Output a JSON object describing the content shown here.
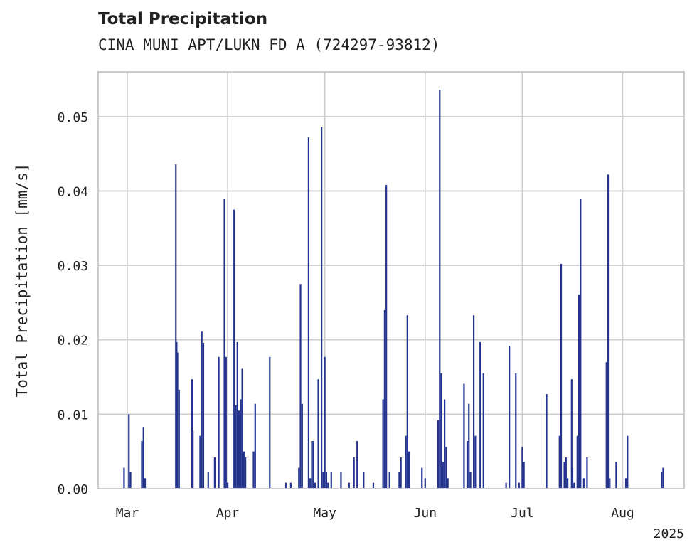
{
  "chart_data": {
    "type": "bar",
    "title": "Total Precipitation",
    "subtitle": "CINA MUNI APT/LUKN FD A (724297-93812)",
    "ylabel": "Total Precipitation [mm/s]",
    "xlabel": "",
    "x_axis": "date",
    "xlim": [
      "2025-02-20",
      "2025-08-20"
    ],
    "ylim": [
      0,
      0.056
    ],
    "yticks": [
      0.0,
      0.01,
      0.02,
      0.03,
      0.04,
      0.05
    ],
    "ytick_labels": [
      "0.00",
      "0.01",
      "0.02",
      "0.03",
      "0.04",
      "0.05"
    ],
    "xticks": [
      "2025-03-01",
      "2025-04-01",
      "2025-05-01",
      "2025-06-01",
      "2025-07-01",
      "2025-08-01"
    ],
    "xtick_labels": [
      "Mar",
      "Apr",
      "May",
      "Jun",
      "Jul",
      "Aug"
    ],
    "x_offset_label": "2025",
    "grid": true,
    "legend": "none",
    "bar_color": "#23338f",
    "series": [
      {
        "x": [
          "2025-02-28",
          "2025-03-01 12:00",
          "2025-03-02",
          "2025-03-05 12:00",
          "2025-03-06",
          "2025-03-06 12:00",
          "2025-03-16",
          "2025-03-16 06:00",
          "2025-03-16 12:00",
          "2025-03-17",
          "2025-03-21",
          "2025-03-21 06:00",
          "2025-03-23 12:00",
          "2025-03-24",
          "2025-03-24 12:00",
          "2025-03-26",
          "2025-03-28",
          "2025-03-29 06:00",
          "2025-03-31",
          "2025-03-31 12:00",
          "2025-04-01",
          "2025-04-03",
          "2025-04-03 12:00",
          "2025-04-04",
          "2025-04-04 12:00",
          "2025-04-05",
          "2025-04-05 12:00",
          "2025-04-06",
          "2025-04-06 12:00",
          "2025-04-09",
          "2025-04-09 12:00",
          "2025-04-14",
          "2025-04-19",
          "2025-04-20 12:00",
          "2025-04-23",
          "2025-04-23 12:00",
          "2025-04-24",
          "2025-04-26",
          "2025-04-26 12:00",
          "2025-04-27",
          "2025-04-27 12:00",
          "2025-04-28",
          "2025-04-29",
          "2025-04-30",
          "2025-04-30 12:00",
          "2025-05-01",
          "2025-05-01 12:00",
          "2025-05-02",
          "2025-05-03",
          "2025-05-06",
          "2025-05-08 12:00",
          "2025-05-10",
          "2025-05-11",
          "2025-05-13",
          "2025-05-16",
          "2025-05-19",
          "2025-05-19 12:00",
          "2025-05-20",
          "2025-05-21",
          "2025-05-24",
          "2025-05-24 12:00",
          "2025-05-26",
          "2025-05-26 12:00",
          "2025-05-27",
          "2025-05-31",
          "2025-06-01",
          "2025-06-05",
          "2025-06-05 12:00",
          "2025-06-06",
          "2025-06-06 12:00",
          "2025-06-07",
          "2025-06-07 12:00",
          "2025-06-08",
          "2025-06-13",
          "2025-06-14",
          "2025-06-14 12:00",
          "2025-06-15",
          "2025-06-16",
          "2025-06-16 12:00",
          "2025-06-18",
          "2025-06-19",
          "2025-06-26",
          "2025-06-27",
          "2025-06-29",
          "2025-06-30",
          "2025-07-01",
          "2025-07-01 12:00",
          "2025-07-08 12:00",
          "2025-07-12 12:00",
          "2025-07-13",
          "2025-07-14",
          "2025-07-14 12:00",
          "2025-07-15",
          "2025-07-16 06:00",
          "2025-07-16 12:00",
          "2025-07-17",
          "2025-07-18",
          "2025-07-18 12:00",
          "2025-07-19",
          "2025-07-20",
          "2025-07-21",
          "2025-07-27",
          "2025-07-27 12:00",
          "2025-07-28",
          "2025-07-30",
          "2025-08-02",
          "2025-08-02 12:00",
          "2025-08-13",
          "2025-08-13 12:00"
        ],
        "values": [
          0.0028,
          0.01,
          0.0022,
          0.0064,
          0.0083,
          0.0014,
          0.0436,
          0.0197,
          0.0183,
          0.0133,
          0.0147,
          0.0078,
          0.0071,
          0.0211,
          0.0196,
          0.0022,
          0.0042,
          0.0177,
          0.0389,
          0.0177,
          0.0008,
          0.0375,
          0.0112,
          0.0197,
          0.0105,
          0.012,
          0.0161,
          0.005,
          0.0042,
          0.005,
          0.0114,
          0.0177,
          0.0008,
          0.0008,
          0.0028,
          0.0275,
          0.0114,
          0.0472,
          0.0014,
          0.0064,
          0.0064,
          0.0008,
          0.0147,
          0.0486,
          0.0022,
          0.0177,
          0.0022,
          0.0008,
          0.0022,
          0.0022,
          0.0008,
          0.0042,
          0.0064,
          0.0022,
          0.0008,
          0.012,
          0.024,
          0.0408,
          0.0022,
          0.0022,
          0.0042,
          0.0071,
          0.0233,
          0.005,
          0.0028,
          0.0014,
          0.0092,
          0.0536,
          0.0155,
          0.0036,
          0.012,
          0.0056,
          0.0014,
          0.0141,
          0.0064,
          0.0114,
          0.0022,
          0.0233,
          0.0071,
          0.0197,
          0.0155,
          0.0008,
          0.0192,
          0.0155,
          0.0008,
          0.0056,
          0.0036,
          0.0127,
          0.0071,
          0.0302,
          0.0036,
          0.0042,
          0.0014,
          0.0147,
          0.0028,
          0.0008,
          0.0071,
          0.0261,
          0.0389,
          0.0014,
          0.0042,
          0.017,
          0.0422,
          0.0014,
          0.0036,
          0.0014,
          0.0071,
          0.0022,
          0.0028
        ]
      }
    ]
  }
}
